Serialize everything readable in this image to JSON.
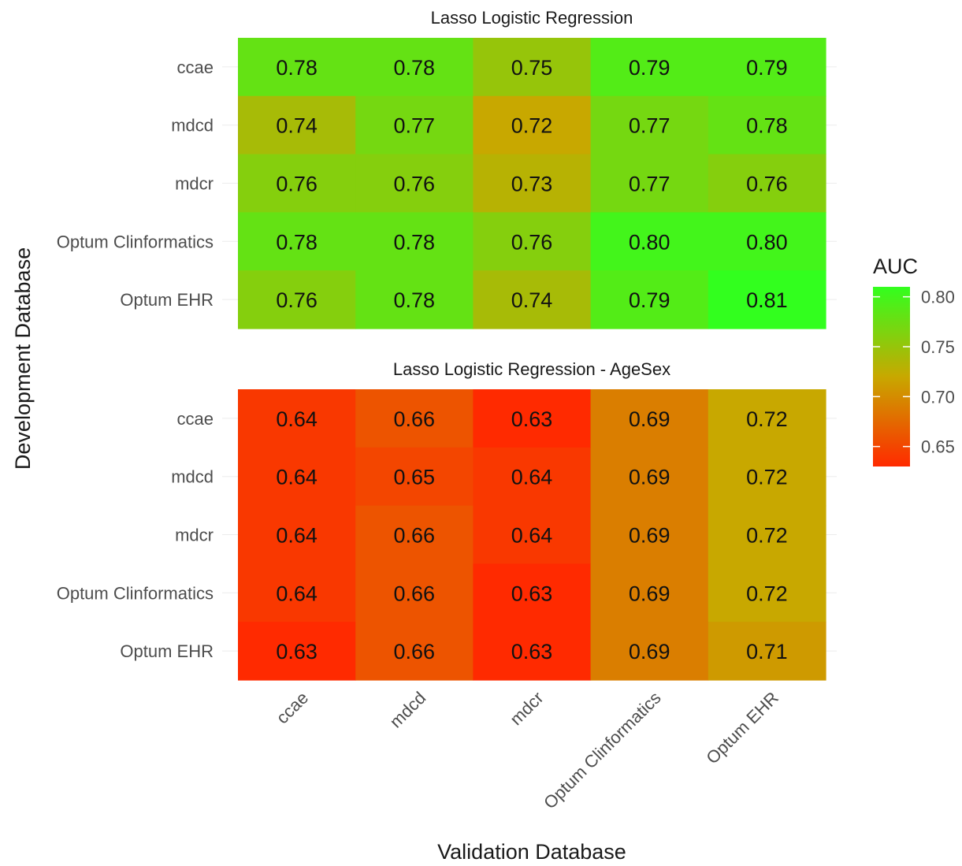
{
  "chart_data": {
    "type": "heatmap",
    "xlabel": "Validation Database",
    "ylabel": "Development Database",
    "categories": [
      "ccae",
      "mdcd",
      "mdcr",
      "Optum Clinformatics",
      "Optum EHR"
    ],
    "rows": [
      "ccae",
      "mdcd",
      "mdcr",
      "Optum Clinformatics",
      "Optum EHR"
    ],
    "legend": {
      "title": "AUC",
      "placement": "right",
      "ticks": [
        0.65,
        0.7,
        0.75,
        0.8
      ],
      "range": [
        0.63,
        0.81
      ],
      "colors": {
        "low": "#ff2a00",
        "mid": "#c8a800",
        "high": "#32ff1e"
      }
    },
    "facets": [
      {
        "title": "Lasso Logistic Regression",
        "values": [
          [
            0.78,
            0.78,
            0.75,
            0.79,
            0.79
          ],
          [
            0.74,
            0.77,
            0.72,
            0.77,
            0.78
          ],
          [
            0.76,
            0.76,
            0.73,
            0.77,
            0.76
          ],
          [
            0.78,
            0.78,
            0.76,
            0.8,
            0.8
          ],
          [
            0.76,
            0.78,
            0.74,
            0.79,
            0.81
          ]
        ]
      },
      {
        "title": "Lasso Logistic Regression - AgeSex",
        "values": [
          [
            0.64,
            0.66,
            0.63,
            0.69,
            0.72
          ],
          [
            0.64,
            0.65,
            0.64,
            0.69,
            0.72
          ],
          [
            0.64,
            0.66,
            0.64,
            0.69,
            0.72
          ],
          [
            0.64,
            0.66,
            0.63,
            0.69,
            0.72
          ],
          [
            0.63,
            0.66,
            0.63,
            0.69,
            0.71
          ]
        ]
      }
    ]
  }
}
